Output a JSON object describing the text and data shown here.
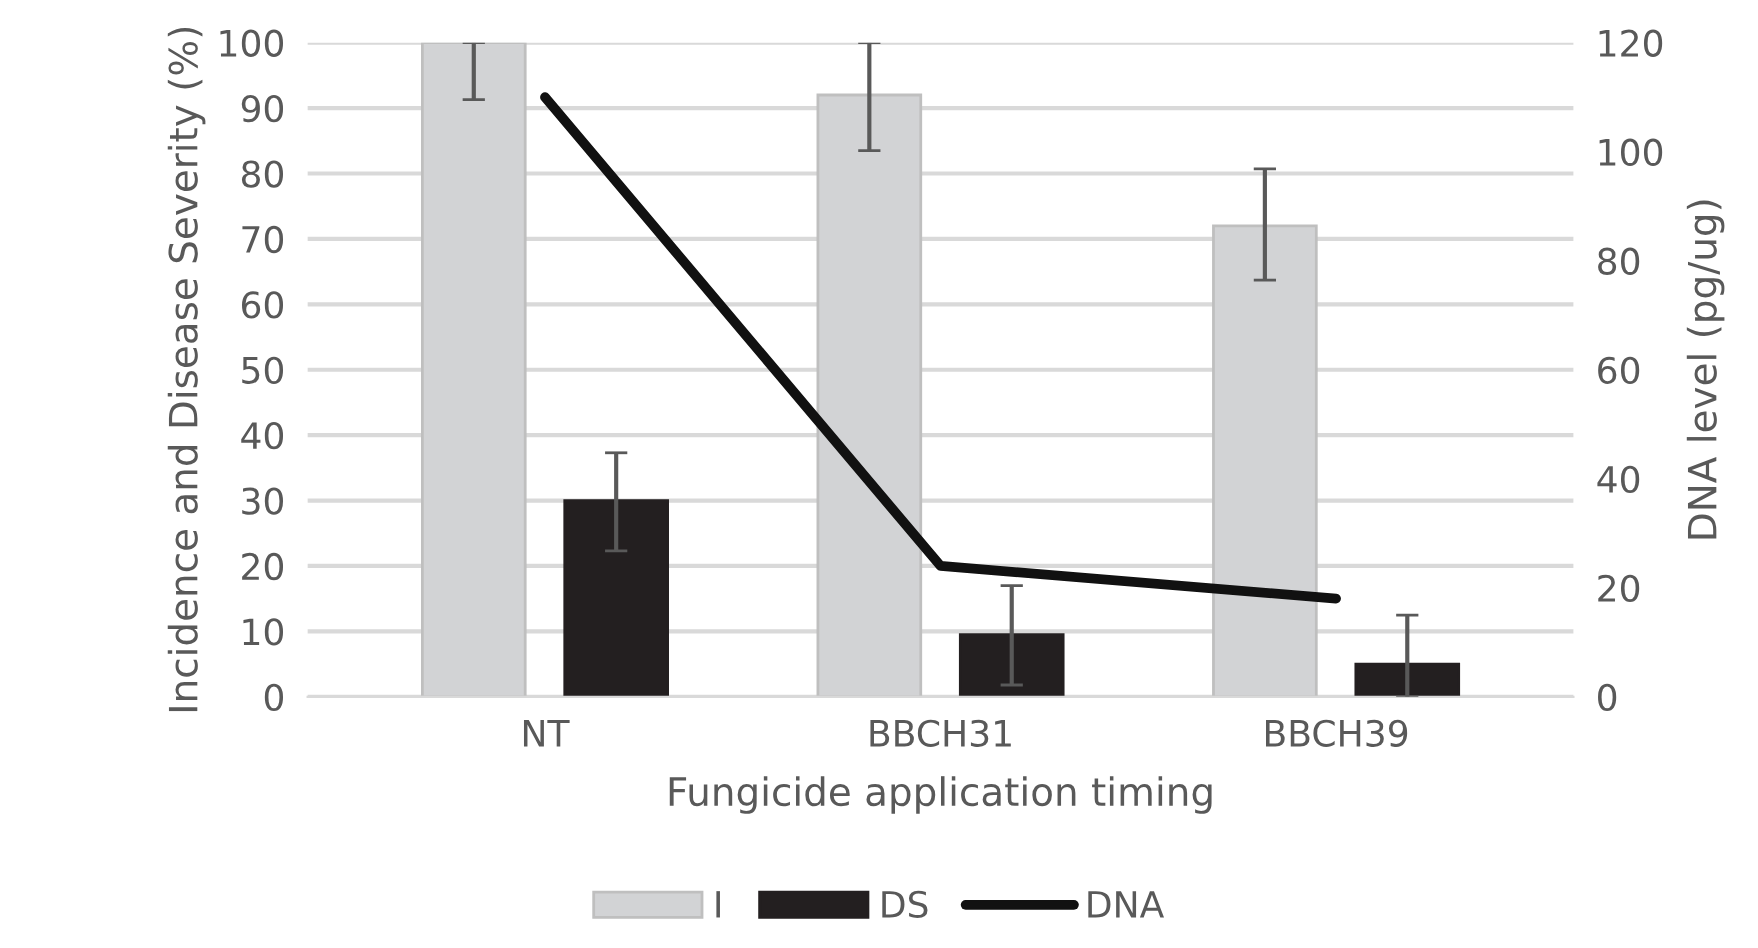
{
  "chart_data": {
    "type": "bar",
    "xlabel": "Fungicide application timing",
    "ylabel": "Incidence and Disease Severity (%)",
    "y2label": "DNA level (pg/ug)",
    "categories": [
      "NT",
      "BBCH31",
      "BBCH39"
    ],
    "series": [
      {
        "name": "I",
        "color": "#d2d3d5",
        "values": [
          100,
          92,
          72
        ],
        "errors": [
          [
            91.3,
            100
          ],
          [
            83.5,
            100
          ],
          [
            63.7,
            80.7
          ]
        ]
      },
      {
        "name": "DS",
        "color": "#231f20",
        "values": [
          30,
          9.5,
          5
        ],
        "errors": [
          [
            22.3,
            37.3
          ],
          [
            1.8,
            17
          ],
          [
            0,
            12.5
          ]
        ]
      },
      {
        "name": "DNA",
        "type": "line",
        "axis": "y2",
        "color": "#111111",
        "values": [
          110,
          24,
          18
        ]
      }
    ],
    "ylim": [
      0,
      100
    ],
    "yticks": [
      0,
      10,
      20,
      30,
      40,
      50,
      60,
      70,
      80,
      90,
      100
    ],
    "y2lim": [
      0,
      120
    ],
    "y2ticks": [
      0,
      20,
      40,
      60,
      80,
      100,
      120
    ],
    "grid": "y",
    "legend": "bottom",
    "marker": "none",
    "line_style": "solid"
  }
}
